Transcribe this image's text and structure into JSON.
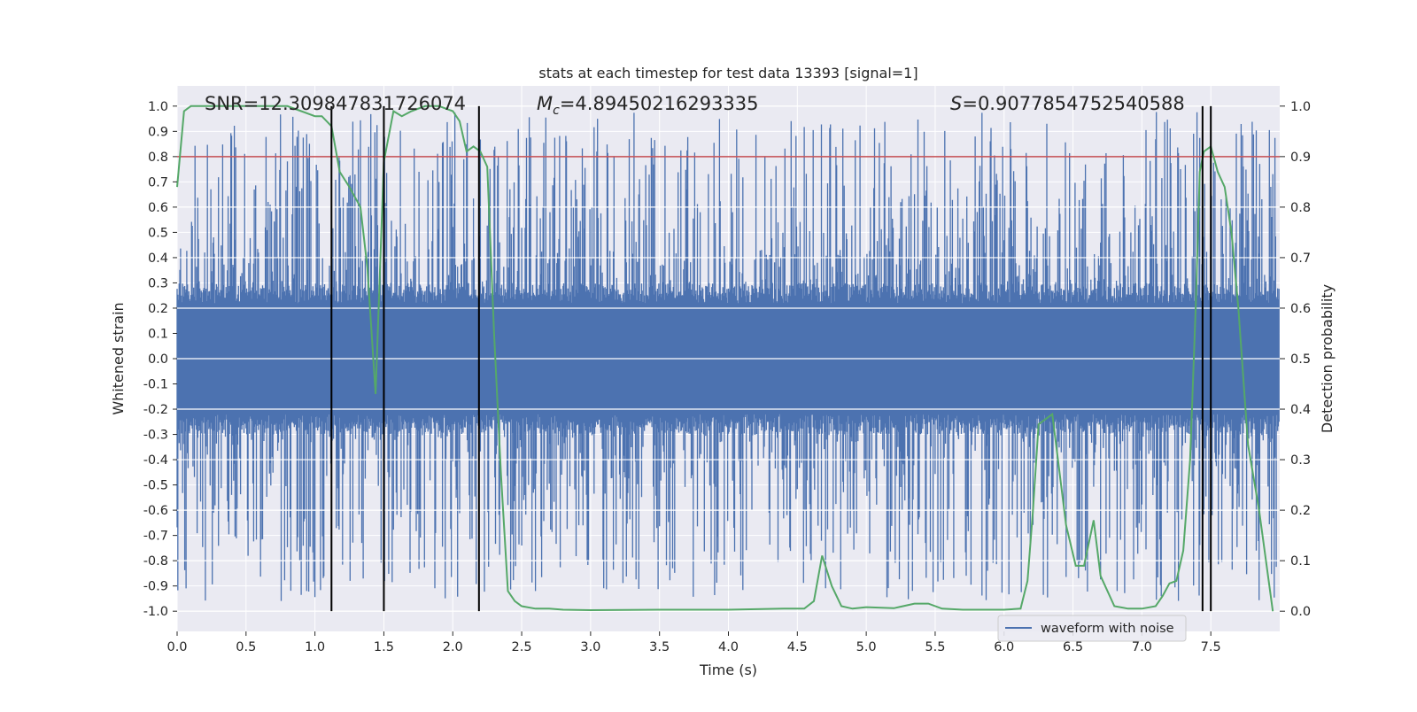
{
  "chart_data": {
    "type": "line",
    "title": "stats at each timestep for test data 13393 [signal=1]",
    "xlabel": "Time (s)",
    "ylabel_left": "Whitened strain",
    "ylabel_right": "Detection probability",
    "xlim": [
      0,
      8
    ],
    "ylim_left": [
      -1.08,
      1.08
    ],
    "ylim_right": [
      -0.04,
      1.04
    ],
    "x_ticks": [
      "0.0",
      "0.5",
      "1.0",
      "1.5",
      "2.0",
      "2.5",
      "3.0",
      "3.5",
      "4.0",
      "4.5",
      "5.0",
      "5.5",
      "6.0",
      "6.5",
      "7.0",
      "7.5"
    ],
    "y_ticks_left": [
      "1.0",
      "0.9",
      "0.8",
      "0.7",
      "0.6",
      "0.5",
      "0.4",
      "0.3",
      "0.2",
      "0.1",
      "0.0",
      "-0.1",
      "-0.2",
      "-0.3",
      "-0.4",
      "-0.5",
      "-0.6",
      "-0.7",
      "-0.8",
      "-0.9",
      "-1.0"
    ],
    "y_ticks_right": [
      "1.0",
      "0.9",
      "0.8",
      "0.7",
      "0.6",
      "0.5",
      "0.4",
      "0.3",
      "0.2",
      "0.1",
      "0.0"
    ],
    "grid": true,
    "legend": {
      "position": "lower-right",
      "entries": [
        "waveform with noise"
      ]
    },
    "annotations": {
      "snr": "SNR=12.309847831726074",
      "mc_symbol": "M",
      "mc_sub": "c",
      "mc_value": "=4.89450216293335",
      "s_symbol": "S",
      "s_value": "=0.9077854752540588"
    },
    "threshold": 0.9,
    "vertical_markers": [
      1.12,
      1.5,
      2.19,
      7.44,
      7.5
    ],
    "waveform": {
      "name": "waveform with noise",
      "typical_amplitude": 0.22,
      "peak_amplitude_range": [
        0.25,
        0.98
      ],
      "samples_shown": 1600
    },
    "series": [
      {
        "name": "",
        "x": [
          0.0,
          0.05,
          0.1,
          0.2,
          0.3,
          0.4,
          0.5,
          0.6,
          0.7,
          0.8,
          0.9,
          1.0,
          1.05,
          1.12,
          1.18,
          1.25,
          1.33,
          1.38,
          1.44,
          1.5,
          1.57,
          1.63,
          1.7,
          1.8,
          1.9,
          2.0,
          2.05,
          2.1,
          2.15,
          2.2,
          2.25,
          2.3,
          2.35,
          2.4,
          2.45,
          2.5,
          2.6,
          2.7,
          2.8,
          3.0,
          3.5,
          4.0,
          4.4,
          4.55,
          4.62,
          4.68,
          4.75,
          4.82,
          4.9,
          5.0,
          5.2,
          5.35,
          5.45,
          5.55,
          5.7,
          6.0,
          6.12,
          6.17,
          6.21,
          6.25,
          6.3,
          6.35,
          6.45,
          6.52,
          6.58,
          6.65,
          6.7,
          6.8,
          6.9,
          7.0,
          7.1,
          7.15,
          7.2,
          7.25,
          7.3,
          7.35,
          7.39,
          7.42,
          7.45,
          7.5,
          7.55,
          7.6,
          7.65,
          7.7,
          7.77,
          7.85,
          7.95
        ],
        "y": [
          0.84,
          0.99,
          1.0,
          1.0,
          1.0,
          1.0,
          1.0,
          1.0,
          1.0,
          1.0,
          0.99,
          0.98,
          0.98,
          0.96,
          0.87,
          0.84,
          0.8,
          0.68,
          0.43,
          0.89,
          0.99,
          0.98,
          0.99,
          1.0,
          1.0,
          0.99,
          0.97,
          0.91,
          0.92,
          0.91,
          0.88,
          0.55,
          0.27,
          0.04,
          0.02,
          0.01,
          0.005,
          0.005,
          0.003,
          0.002,
          0.003,
          0.003,
          0.005,
          0.005,
          0.02,
          0.11,
          0.05,
          0.01,
          0.005,
          0.008,
          0.006,
          0.015,
          0.015,
          0.005,
          0.003,
          0.003,
          0.005,
          0.06,
          0.2,
          0.37,
          0.38,
          0.39,
          0.17,
          0.09,
          0.09,
          0.18,
          0.07,
          0.01,
          0.005,
          0.005,
          0.01,
          0.03,
          0.055,
          0.06,
          0.12,
          0.3,
          0.6,
          0.87,
          0.91,
          0.92,
          0.87,
          0.84,
          0.75,
          0.6,
          0.33,
          0.2,
          0.0
        ]
      }
    ],
    "colors": {
      "plot_bg": "#eaeaf2",
      "waveform": "#4c72b0",
      "probability": "#55a868",
      "threshold": "#c44e52",
      "markers": "#000000",
      "grid": "#ffffff"
    }
  }
}
